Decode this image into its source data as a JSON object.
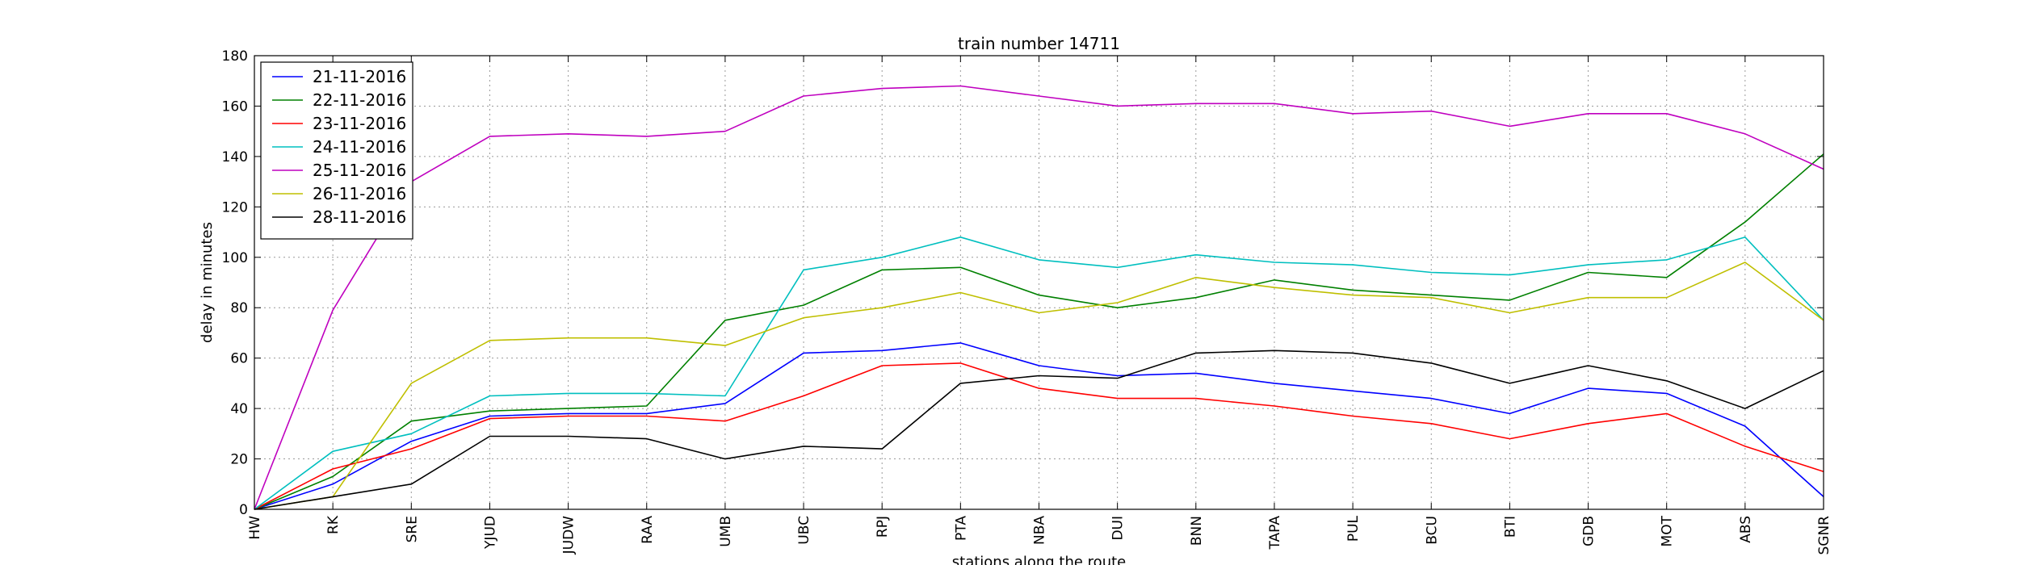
{
  "chart_data": {
    "type": "line",
    "title": "train number 14711",
    "xlabel": "stations along the route",
    "ylabel": "delay in minutes",
    "ylim": [
      0,
      180
    ],
    "yticks": [
      0,
      20,
      40,
      60,
      80,
      100,
      120,
      140,
      160,
      180
    ],
    "grid": true,
    "legend_position": "top-left",
    "categories": [
      "HW",
      "RK",
      "SRE",
      "YJUD",
      "JUDW",
      "RAA",
      "UMB",
      "UBC",
      "RPJ",
      "PTA",
      "NBA",
      "DUI",
      "BNN",
      "TAPA",
      "PUL",
      "BCU",
      "BTI",
      "GDB",
      "MOT",
      "ABS",
      "SGNR"
    ],
    "series": [
      {
        "name": "21-11-2016",
        "color": "#0000ff",
        "values": [
          0,
          10,
          27,
          37,
          38,
          38,
          42,
          62,
          63,
          66,
          57,
          53,
          54,
          50,
          47,
          44,
          38,
          48,
          46,
          33,
          5
        ]
      },
      {
        "name": "22-11-2016",
        "color": "#008000",
        "values": [
          0,
          13,
          35,
          39,
          40,
          41,
          75,
          81,
          95,
          96,
          85,
          80,
          84,
          91,
          87,
          85,
          83,
          94,
          92,
          114,
          141
        ]
      },
      {
        "name": "23-11-2016",
        "color": "#ff0000",
        "values": [
          0,
          16,
          24,
          36,
          37,
          37,
          35,
          45,
          57,
          58,
          48,
          44,
          44,
          41,
          37,
          34,
          28,
          34,
          38,
          25,
          15
        ]
      },
      {
        "name": "24-11-2016",
        "color": "#00bfbf",
        "values": [
          0,
          23,
          30,
          45,
          46,
          46,
          45,
          95,
          100,
          108,
          99,
          96,
          101,
          98,
          97,
          94,
          93,
          97,
          99,
          108,
          75
        ]
      },
      {
        "name": "25-11-2016",
        "color": "#bf00bf",
        "values": [
          0,
          79,
          130,
          148,
          149,
          148,
          150,
          164,
          167,
          168,
          164,
          160,
          161,
          161,
          157,
          158,
          152,
          157,
          157,
          149,
          135
        ]
      },
      {
        "name": "26-11-2016",
        "color": "#bfbf00",
        "values": [
          0,
          5,
          50,
          67,
          68,
          68,
          65,
          76,
          80,
          86,
          78,
          82,
          92,
          88,
          85,
          84,
          78,
          84,
          84,
          98,
          75
        ]
      },
      {
        "name": "28-11-2016",
        "color": "#000000",
        "values": [
          0,
          5,
          10,
          29,
          29,
          28,
          20,
          25,
          24,
          50,
          53,
          52,
          62,
          63,
          62,
          58,
          50,
          57,
          51,
          40,
          55
        ]
      }
    ]
  }
}
